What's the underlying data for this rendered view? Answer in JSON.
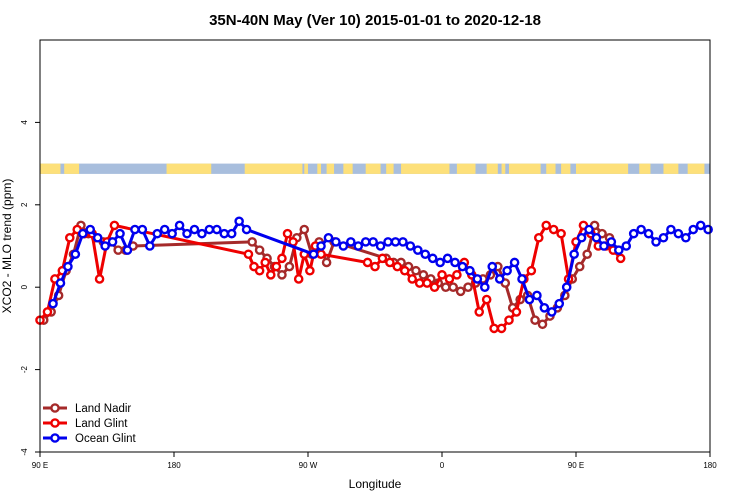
{
  "chart_data": {
    "type": "line",
    "title": "35N-40N May (Ver 10)   2015-01-01 to 2020-12-18",
    "xlabel": "Longitude",
    "ylabel": "XCO2 - MLO trend (ppm)",
    "xlim": [
      -180,
      180
    ],
    "ylim": [
      -4,
      6
    ],
    "x_ticks": [
      {
        "value": -180,
        "label": "90 E"
      },
      {
        "value": -108,
        "label": "180"
      },
      {
        "value": -36,
        "label": "90 W"
      },
      {
        "value": 36,
        "label": "0"
      },
      {
        "value": 108,
        "label": "90 E"
      },
      {
        "value": 180,
        "label": "180"
      }
    ],
    "y_ticks": [
      -4,
      -2,
      0,
      2,
      4
    ],
    "grid": false,
    "legend_position": "bottom-left",
    "map_strip": {
      "y_range": [
        2.75,
        3.0
      ],
      "ocean_color": "#a8bedd",
      "land_color": "#fde07a",
      "land_segments": [
        [
          -180,
          -169
        ],
        [
          -167,
          -159
        ],
        [
          -112,
          -88
        ],
        [
          -70,
          -39
        ],
        [
          -38,
          -36
        ],
        [
          -31,
          -29
        ],
        [
          -26,
          -22
        ],
        [
          -17,
          -12
        ],
        [
          -5,
          3
        ],
        [
          6,
          10
        ],
        [
          14,
          40
        ],
        [
          44,
          54
        ],
        [
          60,
          66
        ],
        [
          68,
          70
        ],
        [
          72,
          89
        ],
        [
          92,
          97
        ],
        [
          100,
          105
        ],
        [
          108,
          136
        ],
        [
          142,
          148
        ],
        [
          155,
          163
        ],
        [
          168,
          177
        ]
      ]
    },
    "series": [
      {
        "name": "Land Nadir",
        "color": "#a52a2a",
        "x": [
          -178,
          -174,
          -170,
          -166,
          -162,
          -158,
          -154,
          -150,
          -146,
          -142,
          -138,
          -134,
          -130,
          -66,
          -62,
          -58,
          -54,
          -50,
          -46,
          -42,
          -38,
          -34,
          -30,
          -26,
          -22,
          6,
          10,
          14,
          18,
          22,
          26,
          30,
          34,
          38,
          42,
          46,
          50,
          54,
          58,
          62,
          66,
          70,
          74,
          78,
          82,
          86,
          90,
          94,
          98,
          102,
          106,
          110,
          114,
          118,
          122,
          126,
          130
        ],
        "y": [
          -0.8,
          -0.6,
          -0.2,
          0.4,
          0.8,
          1.5,
          1.3,
          1.2,
          1.1,
          1.1,
          0.9,
          0.9,
          1.0,
          1.1,
          0.9,
          0.7,
          0.5,
          0.3,
          0.5,
          1.2,
          1.4,
          0.8,
          1.1,
          0.6,
          1.1,
          0.7,
          0.6,
          0.6,
          0.5,
          0.4,
          0.3,
          0.2,
          0.1,
          0.0,
          0.0,
          -0.1,
          0.0,
          0.1,
          0.2,
          0.3,
          0.5,
          0.1,
          -0.5,
          -0.3,
          -0.2,
          -0.8,
          -0.9,
          -0.7,
          -0.5,
          -0.2,
          0.2,
          0.5,
          0.8,
          1.5,
          1.3,
          1.2,
          0.9
        ]
      },
      {
        "name": "Land Glint",
        "color": "#ee0000",
        "x": [
          -180,
          -176,
          -172,
          -168,
          -164,
          -160,
          -156,
          -152,
          -148,
          -144,
          -140,
          -68,
          -65,
          -62,
          -59,
          -56,
          -53,
          -50,
          -47,
          -44,
          -41,
          -38,
          -35,
          -32,
          -29,
          -4,
          0,
          4,
          8,
          12,
          16,
          20,
          24,
          28,
          32,
          36,
          40,
          44,
          48,
          52,
          56,
          60,
          64,
          68,
          72,
          76,
          80,
          84,
          88,
          92,
          96,
          100,
          104,
          108,
          112,
          116,
          120,
          124,
          128,
          132
        ],
        "y": [
          -0.8,
          -0.6,
          0.2,
          0.4,
          1.2,
          1.4,
          1.3,
          1.3,
          0.2,
          1.1,
          1.5,
          0.8,
          0.5,
          0.4,
          0.6,
          0.3,
          0.5,
          0.7,
          1.3,
          1.1,
          0.2,
          0.8,
          0.4,
          1.0,
          0.8,
          0.6,
          0.5,
          0.7,
          0.6,
          0.5,
          0.4,
          0.2,
          0.1,
          0.1,
          0.0,
          0.3,
          0.2,
          0.3,
          0.6,
          0.3,
          -0.6,
          -0.3,
          -1.0,
          -1.0,
          -0.8,
          -0.6,
          0.2,
          0.4,
          1.2,
          1.5,
          1.4,
          1.3,
          0.2,
          1.1,
          1.5,
          1.3,
          1.0,
          1.0,
          0.9,
          0.7
        ]
      },
      {
        "name": "Ocean Glint",
        "color": "#0000ee",
        "x": [
          -173,
          -169,
          -165,
          -161,
          -157,
          -153,
          -149,
          -145,
          -141,
          -137,
          -133,
          -129,
          -125,
          -121,
          -117,
          -113,
          -109,
          -105,
          -101,
          -97,
          -93,
          -89,
          -85,
          -81,
          -77,
          -73,
          -69,
          -33,
          -29,
          -25,
          -21,
          -17,
          -13,
          -9,
          -5,
          -1,
          3,
          7,
          11,
          15,
          19,
          23,
          27,
          31,
          35,
          39,
          43,
          47,
          51,
          55,
          59,
          63,
          67,
          71,
          75,
          79,
          83,
          87,
          91,
          95,
          99,
          103,
          107,
          111,
          115,
          119,
          123,
          127,
          131,
          135,
          139,
          143,
          147,
          151,
          155,
          159,
          163,
          167,
          171,
          175,
          179
        ],
        "y": [
          -0.4,
          0.1,
          0.5,
          0.8,
          1.3,
          1.4,
          1.2,
          1.0,
          1.1,
          1.3,
          0.9,
          1.4,
          1.4,
          1.0,
          1.3,
          1.4,
          1.3,
          1.5,
          1.3,
          1.4,
          1.3,
          1.4,
          1.4,
          1.3,
          1.3,
          1.6,
          1.4,
          0.8,
          1.0,
          1.2,
          1.1,
          1.0,
          1.1,
          1.0,
          1.1,
          1.1,
          1.0,
          1.1,
          1.1,
          1.1,
          1.0,
          0.9,
          0.8,
          0.7,
          0.6,
          0.7,
          0.6,
          0.5,
          0.4,
          0.2,
          0.0,
          0.5,
          0.2,
          0.4,
          0.6,
          0.2,
          -0.3,
          -0.2,
          -0.5,
          -0.6,
          -0.4,
          0.0,
          0.8,
          1.2,
          1.4,
          1.2,
          1.0,
          1.1,
          0.9,
          1.0,
          1.3,
          1.4,
          1.3,
          1.1,
          1.2,
          1.4,
          1.3,
          1.2,
          1.4,
          1.5,
          1.4
        ]
      }
    ]
  }
}
